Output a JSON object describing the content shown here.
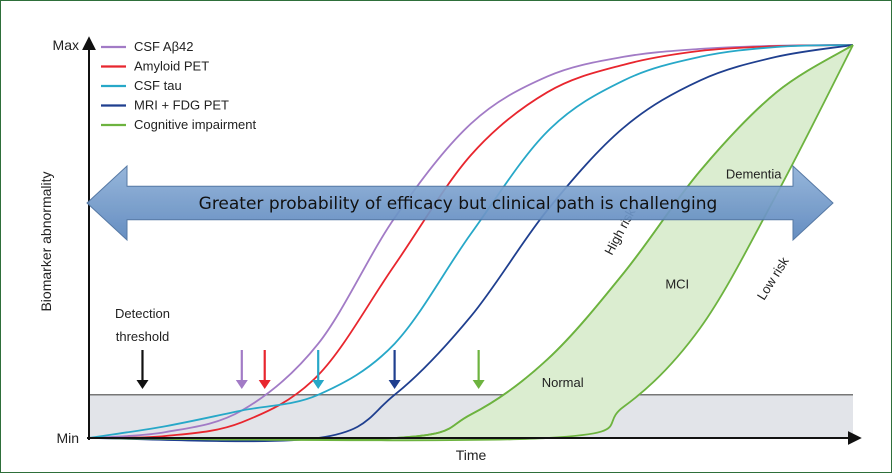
{
  "chart_data": {
    "type": "line",
    "title": "",
    "xlabel": "Time",
    "ylabel": "Biomarker abnormality",
    "y_ticks": [
      "Min",
      "Max"
    ],
    "x_range": [
      0,
      100
    ],
    "y_range": [
      0,
      100
    ],
    "detection_threshold": 11,
    "series": [
      {
        "name": "CSF Aβ42",
        "color": "#a27bc6",
        "x": [
          0,
          10,
          20,
          30,
          40,
          50,
          60,
          70,
          80,
          90,
          100
        ],
        "y": [
          0,
          1.5,
          7,
          24,
          56,
          80,
          92,
          97,
          99,
          99.8,
          100
        ]
      },
      {
        "name": "Amyloid PET",
        "color": "#e8262e",
        "x": [
          0,
          10,
          20,
          30,
          40,
          50,
          60,
          70,
          80,
          90,
          100
        ],
        "y": [
          0,
          0.5,
          4,
          16,
          44,
          72,
          88,
          95,
          98.5,
          99.7,
          100
        ]
      },
      {
        "name": "CSF tau",
        "color": "#27a8c8",
        "x": [
          0,
          10,
          20,
          30,
          40,
          50,
          60,
          70,
          80,
          90,
          100
        ],
        "y": [
          0,
          3,
          7,
          11,
          24,
          52,
          78,
          91,
          97,
          99.5,
          100
        ]
      },
      {
        "name": "MRI + FDG PET",
        "color": "#1f3f8f",
        "x": [
          0,
          30,
          40,
          50,
          60,
          70,
          80,
          90,
          100
        ],
        "y": [
          0,
          0,
          11,
          31,
          58,
          79,
          91,
          97,
          100
        ]
      },
      {
        "name": "Cognitive impairment",
        "color": "#6db33f",
        "x": [
          0,
          40,
          50,
          60,
          70,
          80,
          90,
          100
        ],
        "y": [
          0,
          0,
          6,
          20,
          42,
          68,
          88,
          100
        ]
      },
      {
        "name": "High risk",
        "color": "#6db33f",
        "x": [
          0,
          40,
          50,
          60,
          70,
          80,
          90,
          100
        ],
        "y": [
          0,
          0,
          6,
          20,
          42,
          68,
          88,
          100
        ]
      },
      {
        "name": "Low risk",
        "color": "#6db33f",
        "x": [
          0,
          60,
          70,
          80,
          90,
          100
        ],
        "y": [
          0,
          0,
          8,
          28,
          62,
          100
        ]
      }
    ],
    "markers": [
      {
        "name": "Detection threshold",
        "x": 7,
        "color": "#111111"
      },
      {
        "name": "CSF Aβ42",
        "x": 20,
        "color": "#a27bc6"
      },
      {
        "name": "Amyloid PET",
        "x": 23,
        "color": "#e8262e"
      },
      {
        "name": "CSF tau",
        "x": 30,
        "color": "#27a8c8"
      },
      {
        "name": "MRI + FDG PET",
        "x": 40,
        "color": "#1f3f8f"
      },
      {
        "name": "Cognitive impairment",
        "x": 51,
        "color": "#6db33f"
      }
    ],
    "legend": [
      "CSF Aβ42",
      "Amyloid PET",
      "CSF tau",
      "MRI + FDG PET",
      "Cognitive impairment"
    ],
    "regions": {
      "normal": "Normal",
      "mci": "MCI",
      "dementia": "Dementia",
      "high_risk": "High risk",
      "low_risk": "Low risk"
    },
    "annotations": {
      "detection": [
        "Detection",
        "threshold"
      ],
      "banner": "Greater probability of efficacy but clinical path is challenging"
    }
  }
}
